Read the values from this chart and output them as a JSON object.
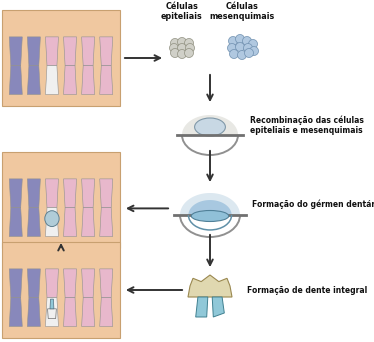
{
  "bg_color": "#ffffff",
  "jaw_fill": "#f0c8a0",
  "jaw_stroke": "#c8a070",
  "tooth_pink": "#e8b8cc",
  "tooth_purple": "#8888bb",
  "tooth_white": "#f0f0f0",
  "tooth_blue_light": "#b8d8e8",
  "arrow_color": "#333333",
  "label_color": "#111111",
  "title1": "Células\nepiteliais",
  "title2": "Células\nmesenquimais",
  "label1": "Recombinação das células\nepiteliais e mesenquimais",
  "label2": "Formação do gérmen dentário",
  "label3": "Formação de dente integral",
  "dome_gray": "#909090",
  "plate_color": "#707070",
  "tooth_crown_color": "#e0d8b0",
  "tooth_root_color": "#90c8d8",
  "cell_epi_fill": "#d0d0c8",
  "cell_epi_ec": "#909080",
  "cell_mes_fill": "#b0c8e0",
  "cell_mes_ec": "#7090b0"
}
